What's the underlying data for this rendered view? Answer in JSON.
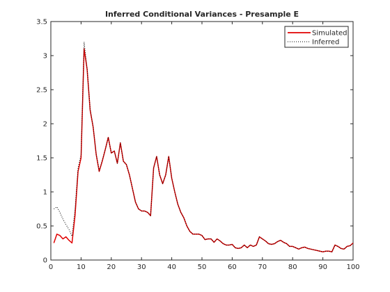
{
  "chart_data": {
    "type": "line",
    "title": "Inferred Conditional Variances - Presample E",
    "xlabel": "",
    "ylabel": "",
    "xlim": [
      0,
      100
    ],
    "ylim": [
      0,
      3.5
    ],
    "x_ticks": [
      0,
      10,
      20,
      30,
      40,
      50,
      60,
      70,
      80,
      90,
      100
    ],
    "y_ticks": [
      0,
      0.5,
      1,
      1.5,
      2,
      2.5,
      3,
      3.5
    ],
    "x_tick_labels": [
      "0",
      "10",
      "20",
      "30",
      "40",
      "50",
      "60",
      "70",
      "80",
      "90",
      "100"
    ],
    "y_tick_labels": [
      "0",
      "0.5",
      "1",
      "1.5",
      "2",
      "2.5",
      "3",
      "3.5"
    ],
    "grid": false,
    "legend_position": "top-right",
    "series": [
      {
        "name": "Simulated",
        "color": "#e00000",
        "style": "solid",
        "x": [
          1,
          2,
          3,
          4,
          5,
          6,
          7,
          8,
          9,
          10,
          11,
          12,
          13,
          14,
          15,
          16,
          17,
          18,
          19,
          20,
          21,
          22,
          23,
          24,
          25,
          26,
          27,
          28,
          29,
          30,
          31,
          32,
          33,
          34,
          35,
          36,
          37,
          38,
          39,
          40,
          41,
          42,
          43,
          44,
          45,
          46,
          47,
          48,
          49,
          50,
          51,
          52,
          53,
          54,
          55,
          56,
          57,
          58,
          59,
          60,
          61,
          62,
          63,
          64,
          65,
          66,
          67,
          68,
          69,
          70,
          71,
          72,
          73,
          74,
          75,
          76,
          77,
          78,
          79,
          80,
          81,
          82,
          83,
          84,
          85,
          86,
          87,
          88,
          89,
          90,
          91,
          92,
          93,
          94,
          95,
          96,
          97,
          98,
          99,
          100
        ],
        "values": [
          0.25,
          0.38,
          0.36,
          0.31,
          0.34,
          0.29,
          0.25,
          0.65,
          1.3,
          1.5,
          3.1,
          2.8,
          2.2,
          1.95,
          1.55,
          1.3,
          1.45,
          1.62,
          1.8,
          1.57,
          1.6,
          1.42,
          1.72,
          1.45,
          1.4,
          1.25,
          1.05,
          0.85,
          0.75,
          0.72,
          0.72,
          0.7,
          0.65,
          1.35,
          1.52,
          1.25,
          1.12,
          1.25,
          1.52,
          1.2,
          1.0,
          0.82,
          0.7,
          0.62,
          0.5,
          0.42,
          0.38,
          0.38,
          0.38,
          0.36,
          0.3,
          0.31,
          0.31,
          0.26,
          0.31,
          0.28,
          0.24,
          0.22,
          0.22,
          0.23,
          0.18,
          0.17,
          0.18,
          0.22,
          0.18,
          0.22,
          0.2,
          0.22,
          0.34,
          0.31,
          0.28,
          0.24,
          0.23,
          0.24,
          0.27,
          0.29,
          0.26,
          0.24,
          0.2,
          0.2,
          0.18,
          0.16,
          0.18,
          0.19,
          0.17,
          0.16,
          0.15,
          0.14,
          0.13,
          0.12,
          0.13,
          0.13,
          0.12,
          0.22,
          0.2,
          0.17,
          0.16,
          0.2,
          0.21,
          0.25
        ]
      },
      {
        "name": "Inferred",
        "color": "#000000",
        "style": "dotted",
        "x": [
          1,
          2,
          3,
          4,
          5,
          6,
          7,
          8,
          9,
          10,
          11,
          12,
          13,
          14,
          15,
          16,
          17,
          18,
          19,
          20,
          21,
          22,
          23,
          24,
          25,
          26,
          27,
          28,
          29,
          30,
          31,
          32,
          33,
          34,
          35,
          36,
          37,
          38,
          39,
          40,
          41,
          42,
          43,
          44,
          45,
          46,
          47,
          48,
          49,
          50,
          51,
          52,
          53,
          54,
          55,
          56,
          57,
          58,
          59,
          60,
          61,
          62,
          63,
          64,
          65,
          66,
          67,
          68,
          69,
          70,
          71,
          72,
          73,
          74,
          75,
          76,
          77,
          78,
          79,
          80,
          81,
          82,
          83,
          84,
          85,
          86,
          87,
          88,
          89,
          90,
          91,
          92,
          93,
          94,
          95,
          96,
          97,
          98,
          99,
          100
        ],
        "values": [
          0.75,
          0.78,
          0.7,
          0.6,
          0.52,
          0.45,
          0.35,
          0.75,
          1.35,
          1.55,
          3.2,
          2.82,
          2.22,
          1.96,
          1.56,
          1.31,
          1.46,
          1.62,
          1.8,
          1.57,
          1.6,
          1.42,
          1.72,
          1.45,
          1.4,
          1.25,
          1.05,
          0.85,
          0.75,
          0.72,
          0.72,
          0.7,
          0.65,
          1.35,
          1.52,
          1.25,
          1.12,
          1.25,
          1.52,
          1.2,
          1.0,
          0.82,
          0.7,
          0.62,
          0.5,
          0.42,
          0.38,
          0.38,
          0.38,
          0.36,
          0.3,
          0.31,
          0.31,
          0.26,
          0.31,
          0.28,
          0.24,
          0.22,
          0.22,
          0.23,
          0.18,
          0.17,
          0.18,
          0.22,
          0.18,
          0.22,
          0.2,
          0.22,
          0.34,
          0.31,
          0.28,
          0.24,
          0.23,
          0.24,
          0.27,
          0.29,
          0.26,
          0.24,
          0.2,
          0.2,
          0.18,
          0.16,
          0.18,
          0.19,
          0.17,
          0.16,
          0.15,
          0.14,
          0.13,
          0.12,
          0.13,
          0.13,
          0.12,
          0.22,
          0.2,
          0.17,
          0.16,
          0.2,
          0.21,
          0.25
        ]
      }
    ]
  }
}
